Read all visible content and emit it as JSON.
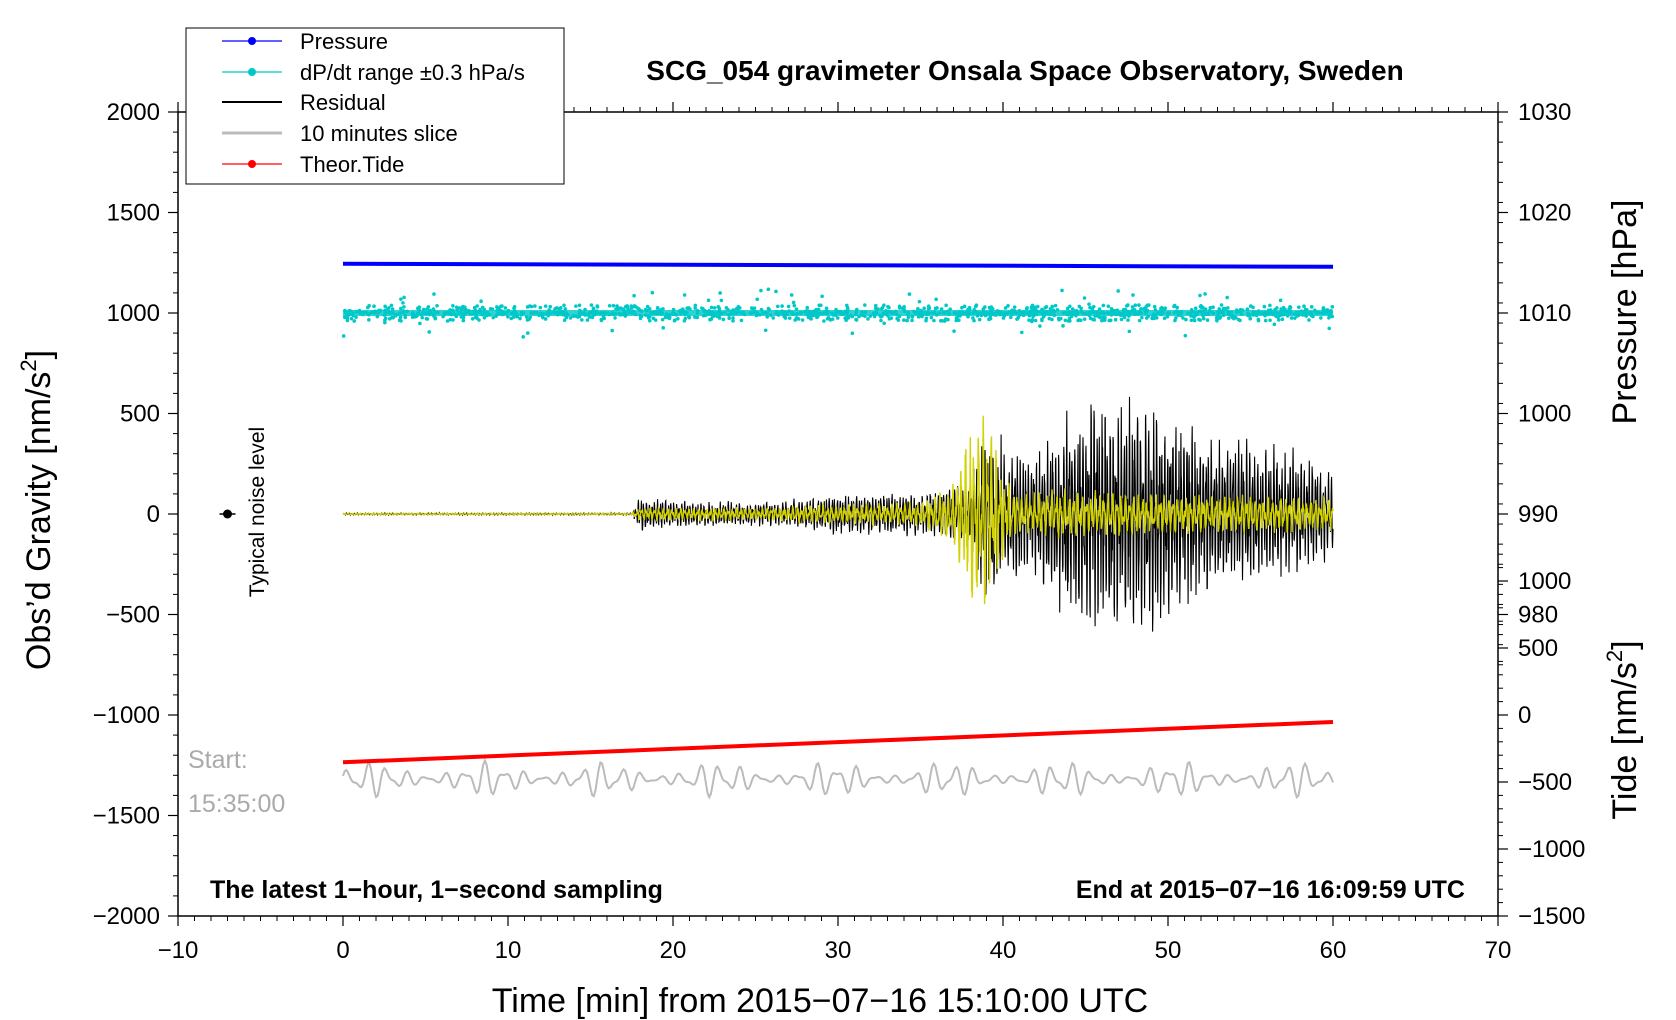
{
  "chart_data": {
    "type": "line",
    "title": "SCG_054 gravimeter Onsala Space Observatory, Sweden",
    "xlabel": "Time [min] from 2015−07−16 15:10:00 UTC",
    "ylabel": "Obs’d Gravity [nm/s",
    "ylabel_sup": "2",
    "ylabel_end": "]",
    "ylabel_right_pressure": "Pressure [hPa]",
    "ylabel_right_tide": "Tide [nm/s",
    "ylabel_right_tide_sup": "2",
    "ylabel_right_tide_end": "]",
    "xlim": [
      -10,
      70
    ],
    "ylim": [
      -2000,
      2000
    ],
    "pressure_lim": [
      950,
      1030
    ],
    "tide_lim": [
      -1500,
      4500
    ],
    "x_ticks": [
      "−10",
      "0",
      "10",
      "20",
      "30",
      "40",
      "50",
      "60",
      "70"
    ],
    "x_tick_values": [
      -10,
      0,
      10,
      20,
      30,
      40,
      50,
      60,
      70
    ],
    "y_ticks": [
      "2000",
      "1500",
      "1000",
      "500",
      "0",
      "−500",
      "−1000",
      "−1500",
      "−2000"
    ],
    "y_tick_values": [
      2000,
      1500,
      1000,
      500,
      0,
      -500,
      -1000,
      -1500,
      -2000
    ],
    "pressure_ticks": [
      "1030",
      "1020",
      "1010",
      "1000",
      "990",
      "980"
    ],
    "pressure_tick_values": [
      1030,
      1020,
      1010,
      1000,
      990,
      980
    ],
    "tide_ticks": [
      "1000",
      "500",
      "0",
      "−500",
      "−1000",
      "−1500"
    ],
    "tide_tick_values": [
      1000,
      500,
      0,
      -500,
      -1000,
      -1500
    ],
    "legend": [
      {
        "label": "Pressure",
        "color": "#0000ff",
        "marker": true
      },
      {
        "label": "dP/dt range ±0.3 hPa/s",
        "color": "#00c8c8",
        "marker": true
      },
      {
        "label": "Residual",
        "color": "#000000",
        "marker": false
      },
      {
        "label": "10 minutes slice",
        "color": "#bbbbbb",
        "marker": false
      },
      {
        "label": "Theor.Tide",
        "color": "#ff0000",
        "marker": true
      }
    ],
    "legend_position": "top-left",
    "annotations": {
      "bottom_left": "The latest 1−hour, 1−second sampling",
      "bottom_right": "End at 2015−07−16 16:09:59 UTC",
      "start_label": "Start:",
      "start_time": "15:35:00",
      "noise_label": "Typical noise level"
    },
    "series": [
      {
        "name": "Pressure",
        "axis": "pressure",
        "color": "#0000ff",
        "x": [
          0,
          60
        ],
        "y": [
          1014.9,
          1014.6
        ]
      },
      {
        "name": "dP/dt",
        "axis": "gravity",
        "color": "#00c8c8",
        "center": 1000,
        "spread": 40,
        "x_range": [
          0,
          60
        ]
      },
      {
        "name": "Residual",
        "axis": "gravity",
        "color": "#000000",
        "envelope_x": [
          0,
          17.5,
          18,
          22,
          26,
          30,
          35,
          38,
          39,
          40,
          42,
          44,
          46,
          48,
          50,
          52,
          55,
          58,
          60
        ],
        "envelope_amp": [
          5,
          5,
          80,
          60,
          60,
          100,
          110,
          150,
          500,
          350,
          300,
          550,
          600,
          550,
          550,
          400,
          350,
          300,
          200
        ]
      },
      {
        "name": "Filtered",
        "axis": "gravity",
        "color": "#d2d200",
        "envelope_x": [
          0,
          17.5,
          18,
          22,
          26,
          30,
          35,
          37,
          38,
          39,
          40,
          41,
          44,
          50,
          55,
          60
        ],
        "envelope_amp": [
          3,
          3,
          35,
          30,
          35,
          50,
          60,
          150,
          450,
          500,
          200,
          100,
          120,
          100,
          100,
          80
        ]
      },
      {
        "name": "Theor.Tide",
        "axis": "gravity",
        "color": "#ff0000",
        "x": [
          0,
          60
        ],
        "y": [
          -1235,
          -1035
        ]
      },
      {
        "name": "10 minutes slice",
        "axis": "gravity",
        "color": "#bbbbbb",
        "center": -1320,
        "amp": 85,
        "x_range": [
          0,
          60
        ]
      }
    ],
    "noise_marker": {
      "x": -7,
      "y": 0
    }
  }
}
